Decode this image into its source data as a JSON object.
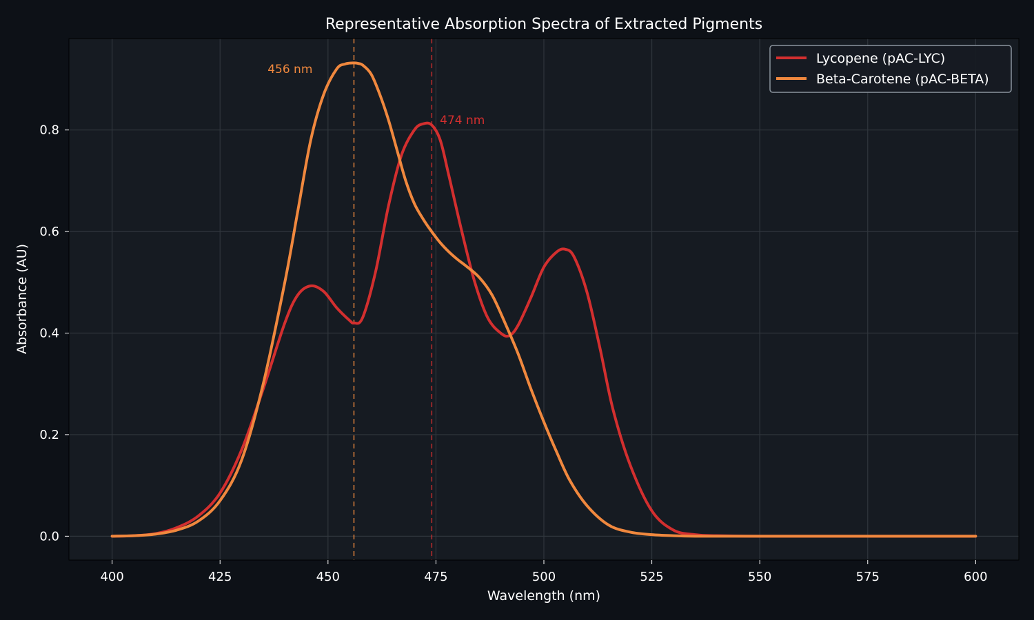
{
  "colors": {
    "figure_bg": "#0d1117",
    "plot_bg": "#161b22",
    "grid": "#30363d",
    "text": "#ffffff",
    "lycopene": "#d32f2f",
    "beta_carotene": "#f0883e"
  },
  "chart_data": {
    "type": "line",
    "title": "Representative Absorption Spectra of Extracted Pigments",
    "xlabel": "Wavelength (nm)",
    "ylabel": "Absorbance (AU)",
    "xlim": [
      390,
      610
    ],
    "ylim": [
      -0.047,
      0.98
    ],
    "xticks": [
      400,
      425,
      450,
      475,
      500,
      525,
      550,
      575,
      600
    ],
    "yticks": [
      0.0,
      0.2,
      0.4,
      0.6,
      0.8
    ],
    "ytick_labels": [
      "0.0",
      "0.2",
      "0.4",
      "0.6",
      "0.8"
    ],
    "grid": true,
    "legend_position": "top-right",
    "series": [
      {
        "name": "Lycopene (pAC-LYC)",
        "color_key": "lycopene",
        "x": [
          400,
          405,
          410,
          415,
          420,
          425,
          430,
          435,
          440,
          443,
          446,
          449,
          452,
          455,
          456,
          458,
          461,
          464,
          467,
          470,
          472,
          474,
          476,
          478,
          481,
          484,
          487,
          490,
          492,
          494,
          497,
          500,
          503,
          505,
          507,
          510,
          513,
          516,
          520,
          525,
          530,
          535,
          540,
          550,
          560,
          575,
          590,
          600
        ],
        "y": [
          0.0,
          0.001,
          0.005,
          0.017,
          0.04,
          0.085,
          0.17,
          0.29,
          0.42,
          0.475,
          0.493,
          0.482,
          0.45,
          0.425,
          0.42,
          0.43,
          0.52,
          0.65,
          0.75,
          0.8,
          0.812,
          0.81,
          0.78,
          0.71,
          0.6,
          0.5,
          0.43,
          0.4,
          0.395,
          0.415,
          0.47,
          0.53,
          0.56,
          0.565,
          0.55,
          0.48,
          0.37,
          0.25,
          0.14,
          0.05,
          0.012,
          0.003,
          0.001,
          0.0,
          0.0,
          0.0,
          0.0,
          0.0
        ]
      },
      {
        "name": "Beta-Carotene (pAC-BETA)",
        "color_key": "beta_carotene",
        "x": [
          400,
          405,
          410,
          415,
          420,
          425,
          430,
          435,
          440,
          443,
          446,
          449,
          452,
          454,
          456,
          457,
          458,
          460,
          462,
          464,
          466,
          468,
          470,
          472,
          474,
          476,
          478,
          480,
          482,
          485,
          488,
          491,
          494,
          497,
          500,
          503,
          506,
          510,
          515,
          520,
          525,
          530,
          535,
          540,
          550,
          560,
          575,
          590,
          600
        ],
        "y": [
          0.0,
          0.001,
          0.004,
          0.012,
          0.03,
          0.07,
          0.15,
          0.3,
          0.5,
          0.64,
          0.78,
          0.87,
          0.92,
          0.93,
          0.932,
          0.931,
          0.928,
          0.91,
          0.87,
          0.82,
          0.76,
          0.7,
          0.655,
          0.625,
          0.6,
          0.578,
          0.56,
          0.545,
          0.532,
          0.51,
          0.475,
          0.42,
          0.36,
          0.29,
          0.225,
          0.165,
          0.11,
          0.06,
          0.022,
          0.008,
          0.003,
          0.001,
          0.0,
          0.0,
          0.0,
          0.0,
          0.0,
          0.0,
          0.0
        ]
      }
    ],
    "annotations": [
      {
        "text": "456 nm",
        "x": 456,
        "color_key": "beta_carotene",
        "label_y": 0.92,
        "label_anchor": "end"
      },
      {
        "text": "474 nm",
        "x": 474,
        "color_key": "lycopene",
        "label_y": 0.82,
        "label_anchor": "start"
      }
    ]
  }
}
